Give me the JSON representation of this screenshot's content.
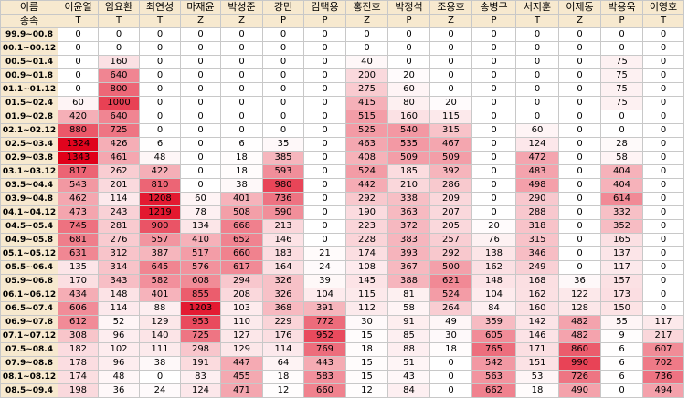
{
  "header": {
    "corner_top": "이름",
    "corner_bottom": "종족"
  },
  "players": [
    {
      "name": "이윤열",
      "race": "T"
    },
    {
      "name": "임요환",
      "race": "T"
    },
    {
      "name": "최연성",
      "race": "T"
    },
    {
      "name": "마재윤",
      "race": "Z"
    },
    {
      "name": "박성준",
      "race": "Z"
    },
    {
      "name": "강민",
      "race": "P"
    },
    {
      "name": "김택용",
      "race": "P"
    },
    {
      "name": "홍진호",
      "race": "Z"
    },
    {
      "name": "박정석",
      "race": "P"
    },
    {
      "name": "조용호",
      "race": "Z"
    },
    {
      "name": "송병구",
      "race": "P"
    },
    {
      "name": "서지훈",
      "race": "T"
    },
    {
      "name": "이제동",
      "race": "Z"
    },
    {
      "name": "박용욱",
      "race": "P"
    },
    {
      "name": "이영호",
      "race": "T"
    }
  ],
  "colors": {
    "header_bg": "#f7e9cf",
    "heat_max": "#e0001a",
    "heat_min": "#ffffff",
    "grid_line": "#c8c8c8"
  },
  "rows": [
    {
      "period": "99.9~00.8",
      "values": [
        "0",
        "0",
        "0",
        "0",
        "0",
        "0",
        "0",
        "0",
        "0",
        "0",
        "0",
        "0",
        "0",
        "0",
        "0"
      ]
    },
    {
      "period": "00.1~00.12",
      "values": [
        "0",
        "0",
        "0",
        "0",
        "0",
        "0",
        "0",
        "0",
        "0",
        "0",
        "0",
        "0",
        "0",
        "0",
        "0"
      ]
    },
    {
      "period": "00.5~01.4",
      "values": [
        "0",
        "160",
        "0",
        "0",
        "0",
        "0",
        "0",
        "40",
        "0",
        "0",
        "0",
        "0",
        "0",
        "75",
        "0"
      ]
    },
    {
      "period": "00.9~01.8",
      "values": [
        "0",
        "640",
        "0",
        "0",
        "0",
        "0",
        "0",
        "200",
        "20",
        "0",
        "0",
        "0",
        "0",
        "75",
        "0"
      ]
    },
    {
      "period": "01.1~01.12",
      "values": [
        "0",
        "800",
        "0",
        "0",
        "0",
        "0",
        "0",
        "275",
        "60",
        "0",
        "0",
        "0",
        "0",
        "75",
        "0"
      ]
    },
    {
      "period": "01.5~02.4",
      "values": [
        "60",
        "1000",
        "0",
        "0",
        "0",
        "0",
        "0",
        "415",
        "80",
        "20",
        "0",
        "0",
        "0",
        "75",
        "0"
      ]
    },
    {
      "period": "01.9~02.8",
      "values": [
        "420",
        "640",
        "0",
        "0",
        "0",
        "0",
        "0",
        "515",
        "160",
        "115",
        "0",
        "0",
        "0",
        "0",
        "0"
      ]
    },
    {
      "period": "02.1~02.12",
      "values": [
        "880",
        "725",
        "0",
        "0",
        "0",
        "0",
        "0",
        "525",
        "540",
        "315",
        "0",
        "60",
        "0",
        "0",
        "0"
      ]
    },
    {
      "period": "02.5~03.4",
      "values": [
        "1324",
        "426",
        "6",
        "0",
        "6",
        "35",
        "0",
        "463",
        "535",
        "467",
        "0",
        "124",
        "0",
        "28",
        "0"
      ]
    },
    {
      "period": "02.9~03.8",
      "values": [
        "1343",
        "461",
        "48",
        "0",
        "18",
        "385",
        "0",
        "408",
        "509",
        "509",
        "0",
        "472",
        "0",
        "58",
        "0"
      ]
    },
    {
      "period": "03.1~03.12",
      "values": [
        "817",
        "262",
        "422",
        "0",
        "18",
        "593",
        "0",
        "524",
        "185",
        "392",
        "0",
        "483",
        "0",
        "404",
        "0"
      ]
    },
    {
      "period": "03.5~04.4",
      "values": [
        "543",
        "201",
        "810",
        "0",
        "38",
        "980",
        "0",
        "442",
        "210",
        "286",
        "0",
        "498",
        "0",
        "404",
        "0"
      ]
    },
    {
      "period": "03.9~04.8",
      "values": [
        "462",
        "114",
        "1208",
        "60",
        "401",
        "736",
        "0",
        "292",
        "338",
        "209",
        "0",
        "290",
        "0",
        "614",
        "0"
      ]
    },
    {
      "period": "04.1~04.12",
      "values": [
        "473",
        "243",
        "1219",
        "78",
        "508",
        "590",
        "0",
        "190",
        "363",
        "207",
        "0",
        "288",
        "0",
        "332",
        "0"
      ]
    },
    {
      "period": "04.5~05.4",
      "values": [
        "745",
        "281",
        "900",
        "134",
        "668",
        "213",
        "0",
        "223",
        "372",
        "205",
        "20",
        "318",
        "0",
        "352",
        "0"
      ]
    },
    {
      "period": "04.9~05.8",
      "values": [
        "681",
        "276",
        "557",
        "410",
        "652",
        "146",
        "0",
        "228",
        "383",
        "257",
        "76",
        "315",
        "0",
        "165",
        "0"
      ]
    },
    {
      "period": "05.1~05.12",
      "values": [
        "631",
        "312",
        "387",
        "517",
        "660",
        "183",
        "21",
        "174",
        "393",
        "292",
        "138",
        "346",
        "0",
        "137",
        "0"
      ]
    },
    {
      "period": "05.5~06.4",
      "values": [
        "135",
        "314",
        "645",
        "576",
        "617",
        "164",
        "24",
        "108",
        "367",
        "500",
        "162",
        "249",
        "0",
        "117",
        "0"
      ]
    },
    {
      "period": "05.9~06.8",
      "values": [
        "170",
        "343",
        "582",
        "608",
        "294",
        "326",
        "39",
        "145",
        "388",
        "621",
        "148",
        "168",
        "36",
        "157",
        "0"
      ]
    },
    {
      "period": "06.1~06.12",
      "values": [
        "434",
        "148",
        "401",
        "855",
        "208",
        "326",
        "104",
        "115",
        "81",
        "524",
        "104",
        "162",
        "122",
        "173",
        "0"
      ]
    },
    {
      "period": "06.5~07.4",
      "values": [
        "606",
        "114",
        "88",
        "1203",
        "103",
        "368",
        "391",
        "112",
        "58",
        "264",
        "84",
        "160",
        "128",
        "150",
        "0"
      ]
    },
    {
      "period": "06.9~07.8",
      "values": [
        "612",
        "52",
        "129",
        "953",
        "110",
        "229",
        "772",
        "30",
        "91",
        "49",
        "359",
        "142",
        "482",
        "55",
        "117"
      ]
    },
    {
      "period": "07.1~07.12",
      "values": [
        "308",
        "96",
        "140",
        "725",
        "127",
        "176",
        "952",
        "15",
        "85",
        "30",
        "605",
        "146",
        "482",
        "9",
        "217"
      ]
    },
    {
      "period": "07.5~08.4",
      "values": [
        "182",
        "102",
        "111",
        "298",
        "129",
        "114",
        "769",
        "18",
        "88",
        "18",
        "765",
        "171",
        "860",
        "6",
        "607"
      ]
    },
    {
      "period": "07.9~08.8",
      "values": [
        "178",
        "96",
        "38",
        "191",
        "447",
        "64",
        "443",
        "15",
        "51",
        "0",
        "542",
        "151",
        "990",
        "6",
        "702"
      ]
    },
    {
      "period": "08.1~08.12",
      "values": [
        "174",
        "48",
        "0",
        "83",
        "455",
        "18",
        "583",
        "15",
        "43",
        "0",
        "563",
        "53",
        "726",
        "6",
        "736"
      ]
    },
    {
      "period": "08.5~09.4",
      "values": [
        "198",
        "36",
        "24",
        "124",
        "471",
        "12",
        "660",
        "12",
        "84",
        "0",
        "662",
        "18",
        "490",
        "0",
        "494"
      ]
    }
  ]
}
